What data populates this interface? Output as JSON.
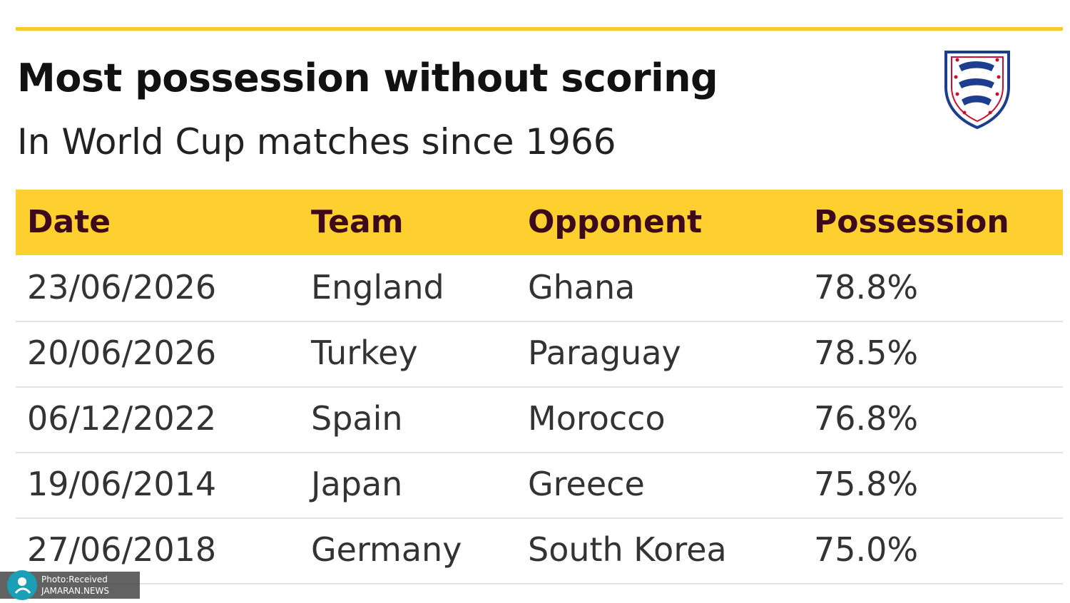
{
  "header": {
    "title": "Most possession without scoring",
    "subtitle": "In World Cup matches since 1966"
  },
  "table": {
    "columns": [
      "Date",
      "Team",
      "Opponent",
      "Possession"
    ],
    "rows": [
      [
        "23/06/2026",
        "England",
        "Ghana",
        "78.8%"
      ],
      [
        "20/06/2026",
        "Turkey",
        "Paraguay",
        "78.5%"
      ],
      [
        "06/12/2022",
        "Spain",
        "Morocco",
        "76.8%"
      ],
      [
        "19/06/2014",
        "Japan",
        "Greece",
        "75.8%"
      ],
      [
        "27/06/2018",
        "Germany",
        "South Korea",
        "75.0%"
      ]
    ]
  },
  "watermark": {
    "line1": "Photo:Received",
    "line2": "JAMARAN.NEWS"
  }
}
